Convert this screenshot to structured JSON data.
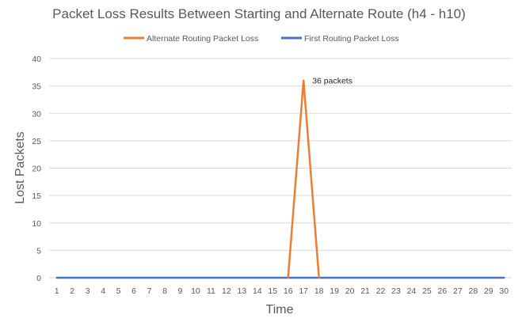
{
  "chart_data": {
    "type": "line",
    "title": "Packet Loss Results Between Starting and Alternate Route (h4 - h10)",
    "xlabel": "Time",
    "ylabel": "Lost Packets",
    "x": [
      1,
      2,
      3,
      4,
      5,
      6,
      7,
      8,
      9,
      10,
      11,
      12,
      13,
      14,
      15,
      16,
      17,
      18,
      19,
      20,
      21,
      22,
      23,
      24,
      25,
      26,
      27,
      28,
      29,
      30
    ],
    "x_tick_labels": [
      "1",
      "2",
      "3",
      "4",
      "5",
      "6",
      "7",
      "8",
      "9",
      "10",
      "11",
      "12",
      "13",
      "14",
      "15",
      "16",
      "17",
      "18",
      "19",
      "20",
      "21",
      "22",
      "23",
      "24",
      "25",
      "26",
      "27",
      "28",
      "29",
      "30"
    ],
    "ylim": [
      0,
      40
    ],
    "y_ticks": [
      0,
      5,
      10,
      15,
      20,
      25,
      30,
      35,
      40
    ],
    "grid": true,
    "legend_position": "top",
    "series": [
      {
        "name": "Alternate Routing Packet Loss",
        "color": "#ed7d31",
        "points": [
          [
            16,
            0
          ],
          [
            17,
            36
          ],
          [
            18,
            0
          ]
        ]
      },
      {
        "name": "First Routing Packet Loss",
        "color": "#4472c4",
        "points": [
          [
            1,
            0
          ],
          [
            2,
            0
          ],
          [
            3,
            0
          ],
          [
            4,
            0
          ],
          [
            5,
            0
          ],
          [
            6,
            0
          ],
          [
            7,
            0
          ],
          [
            8,
            0
          ],
          [
            9,
            0
          ],
          [
            10,
            0
          ],
          [
            11,
            0
          ],
          [
            12,
            0
          ],
          [
            13,
            0
          ],
          [
            14,
            0
          ],
          [
            15,
            0
          ],
          [
            16,
            0
          ],
          [
            17,
            0
          ],
          [
            18,
            0
          ],
          [
            19,
            0
          ],
          [
            20,
            0
          ],
          [
            21,
            0
          ],
          [
            22,
            0
          ],
          [
            23,
            0
          ],
          [
            24,
            0
          ],
          [
            25,
            0
          ],
          [
            26,
            0
          ],
          [
            27,
            0
          ],
          [
            28,
            0
          ],
          [
            29,
            0
          ],
          [
            30,
            0
          ]
        ]
      }
    ],
    "annotations": [
      {
        "text": "36 packets",
        "x": 17,
        "y": 36
      }
    ]
  }
}
